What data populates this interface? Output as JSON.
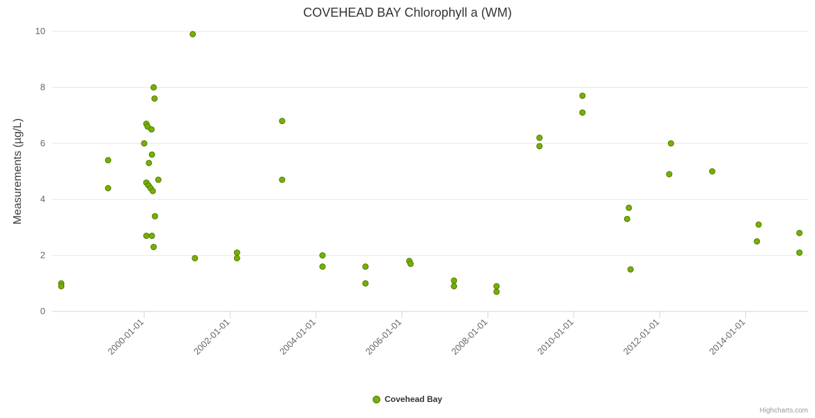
{
  "header": {
    "title": "COVEHEAD BAY Chlorophyll a (WM)"
  },
  "credits": {
    "label": "Highcharts.com"
  },
  "colors": {
    "point_fill": "#76b007",
    "point_stroke": "#4f7a00",
    "grid": "#e6e6e6",
    "axis_line": "#ccd6eb",
    "tick_label": "#666666",
    "title_text": "#333333"
  },
  "chart_data": {
    "type": "scatter",
    "title": "COVEHEAD BAY Chlorophyll a (WM)",
    "xlabel": "",
    "ylabel": "Measurements (µg/L)",
    "ylim": [
      0,
      10
    ],
    "yticks": [
      0,
      2,
      4,
      6,
      8,
      10
    ],
    "xlim": [
      1997.86,
      2015.45
    ],
    "xticks": [
      {
        "value": 2000.0,
        "label": "2000-01-01"
      },
      {
        "value": 2002.0,
        "label": "2002-01-01"
      },
      {
        "value": 2004.0,
        "label": "2004-01-01"
      },
      {
        "value": 2006.0,
        "label": "2006-01-01"
      },
      {
        "value": 2008.0,
        "label": "2008-01-01"
      },
      {
        "value": 2010.0,
        "label": "2010-01-01"
      },
      {
        "value": 2012.0,
        "label": "2012-01-01"
      },
      {
        "value": 2014.0,
        "label": "2014-01-01"
      }
    ],
    "grid": "horizontal-only",
    "legend_position": "bottom-center",
    "series": [
      {
        "name": "Covehead Bay",
        "color": "#76b007",
        "marker": "circle",
        "points": [
          [
            1998.07,
            1.0
          ],
          [
            1998.07,
            0.9
          ],
          [
            1999.16,
            5.4
          ],
          [
            1999.16,
            4.4
          ],
          [
            2000.0,
            6.0
          ],
          [
            2000.05,
            6.7
          ],
          [
            2000.08,
            6.6
          ],
          [
            2000.17,
            6.5
          ],
          [
            2000.22,
            8.0
          ],
          [
            2000.24,
            7.6
          ],
          [
            2000.18,
            5.6
          ],
          [
            2000.11,
            5.3
          ],
          [
            2000.05,
            4.6
          ],
          [
            2000.1,
            4.5
          ],
          [
            2000.15,
            4.4
          ],
          [
            2000.2,
            4.3
          ],
          [
            2000.33,
            4.7
          ],
          [
            2000.25,
            3.4
          ],
          [
            2000.05,
            2.7
          ],
          [
            2000.18,
            2.7
          ],
          [
            2000.22,
            2.3
          ],
          [
            2001.13,
            9.9
          ],
          [
            2001.18,
            1.9
          ],
          [
            2002.16,
            2.1
          ],
          [
            2002.16,
            1.9
          ],
          [
            2003.21,
            6.8
          ],
          [
            2003.21,
            4.7
          ],
          [
            2004.15,
            2.0
          ],
          [
            2004.15,
            1.6
          ],
          [
            2005.15,
            1.6
          ],
          [
            2005.15,
            1.0
          ],
          [
            2006.17,
            1.8
          ],
          [
            2006.2,
            1.7
          ],
          [
            2007.21,
            1.1
          ],
          [
            2007.21,
            0.9
          ],
          [
            2008.2,
            0.9
          ],
          [
            2008.2,
            0.7
          ],
          [
            2009.2,
            6.2
          ],
          [
            2009.2,
            5.9
          ],
          [
            2010.2,
            7.7
          ],
          [
            2010.2,
            7.1
          ],
          [
            2011.28,
            3.7
          ],
          [
            2011.24,
            3.3
          ],
          [
            2011.32,
            1.5
          ],
          [
            2012.26,
            6.0
          ],
          [
            2012.22,
            4.9
          ],
          [
            2013.22,
            5.0
          ],
          [
            2014.3,
            3.1
          ],
          [
            2014.26,
            2.5
          ],
          [
            2015.25,
            2.8
          ],
          [
            2015.25,
            2.1
          ]
        ]
      }
    ]
  }
}
